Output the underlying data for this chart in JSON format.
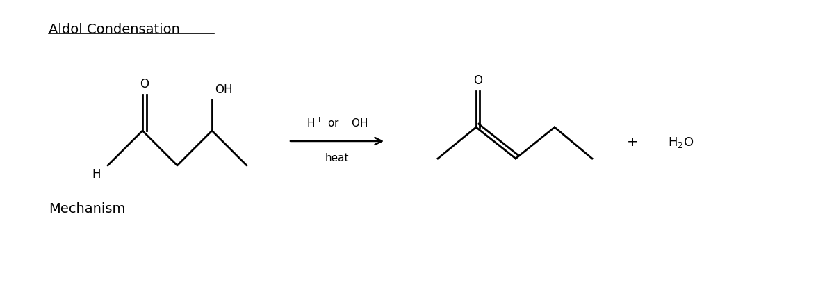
{
  "title": "Aldol Condensation",
  "mechanism_label": "Mechanism",
  "arrow_label_top": "H⁺ or ⁻OH",
  "arrow_label_bottom": "heat",
  "plus_sign": "+",
  "h2o_label": "H₂O",
  "background_color": "#ffffff",
  "line_color": "#000000",
  "line_width": 2.0,
  "font_size_title": 14,
  "font_size_labels": 12,
  "font_size_mechanism": 14
}
